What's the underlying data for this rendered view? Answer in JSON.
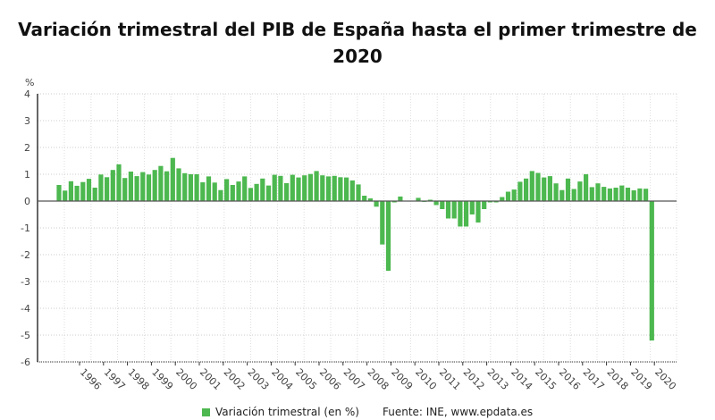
{
  "chart_data": {
    "type": "bar",
    "title": "Variación trimestral del PIB de España hasta el primer trimestre de 2020",
    "ylabel": "%",
    "ylim": [
      -6,
      4
    ],
    "yticks": [
      "4",
      "3",
      "2",
      "1",
      "0",
      "-1",
      "-2",
      "-3",
      "-4",
      "-5",
      "-6"
    ],
    "xtick_labels": [
      "1996",
      "1997",
      "1998",
      "1999",
      "2000",
      "2001",
      "2002",
      "2003",
      "2004",
      "2005",
      "2006",
      "2007",
      "2008",
      "2009",
      "2010",
      "2011",
      "2012",
      "2013",
      "2014",
      "2015",
      "2016",
      "2017",
      "2018",
      "2019",
      "2020"
    ],
    "grid": true,
    "legend_position": "bottom",
    "color": "#4cb84f",
    "series": [
      {
        "name": "Variación trimestral (en %)",
        "values": [
          0.6,
          0.39,
          0.74,
          0.57,
          0.71,
          0.83,
          0.5,
          0.99,
          0.89,
          1.16,
          1.37,
          0.86,
          1.1,
          0.93,
          1.08,
          0.99,
          1.16,
          1.31,
          1.11,
          1.61,
          1.22,
          1.04,
          1.0,
          1.0,
          0.7,
          0.92,
          0.69,
          0.41,
          0.82,
          0.6,
          0.73,
          0.92,
          0.49,
          0.64,
          0.84,
          0.58,
          0.98,
          0.94,
          0.67,
          0.98,
          0.88,
          0.96,
          1.01,
          1.12,
          0.96,
          0.92,
          0.94,
          0.89,
          0.88,
          0.77,
          0.62,
          0.2,
          0.1,
          -0.21,
          -1.62,
          -2.6,
          -0.05,
          0.17,
          0.0,
          0.0,
          0.12,
          -0.03,
          0.05,
          -0.15,
          -0.3,
          -0.65,
          -0.65,
          -0.95,
          -0.95,
          -0.5,
          -0.8,
          -0.3,
          -0.05,
          -0.05,
          0.15,
          0.35,
          0.43,
          0.72,
          0.84,
          1.12,
          1.05,
          0.88,
          0.93,
          0.66,
          0.41,
          0.84,
          0.45,
          0.73,
          1.0,
          0.52,
          0.66,
          0.53,
          0.47,
          0.5,
          0.58,
          0.5,
          0.4,
          0.47,
          0.46,
          -5.2
        ]
      }
    ]
  },
  "legend": {
    "label": "Variación trimestral (en %)"
  },
  "source": "Fuente: INE, www.epdata.es"
}
